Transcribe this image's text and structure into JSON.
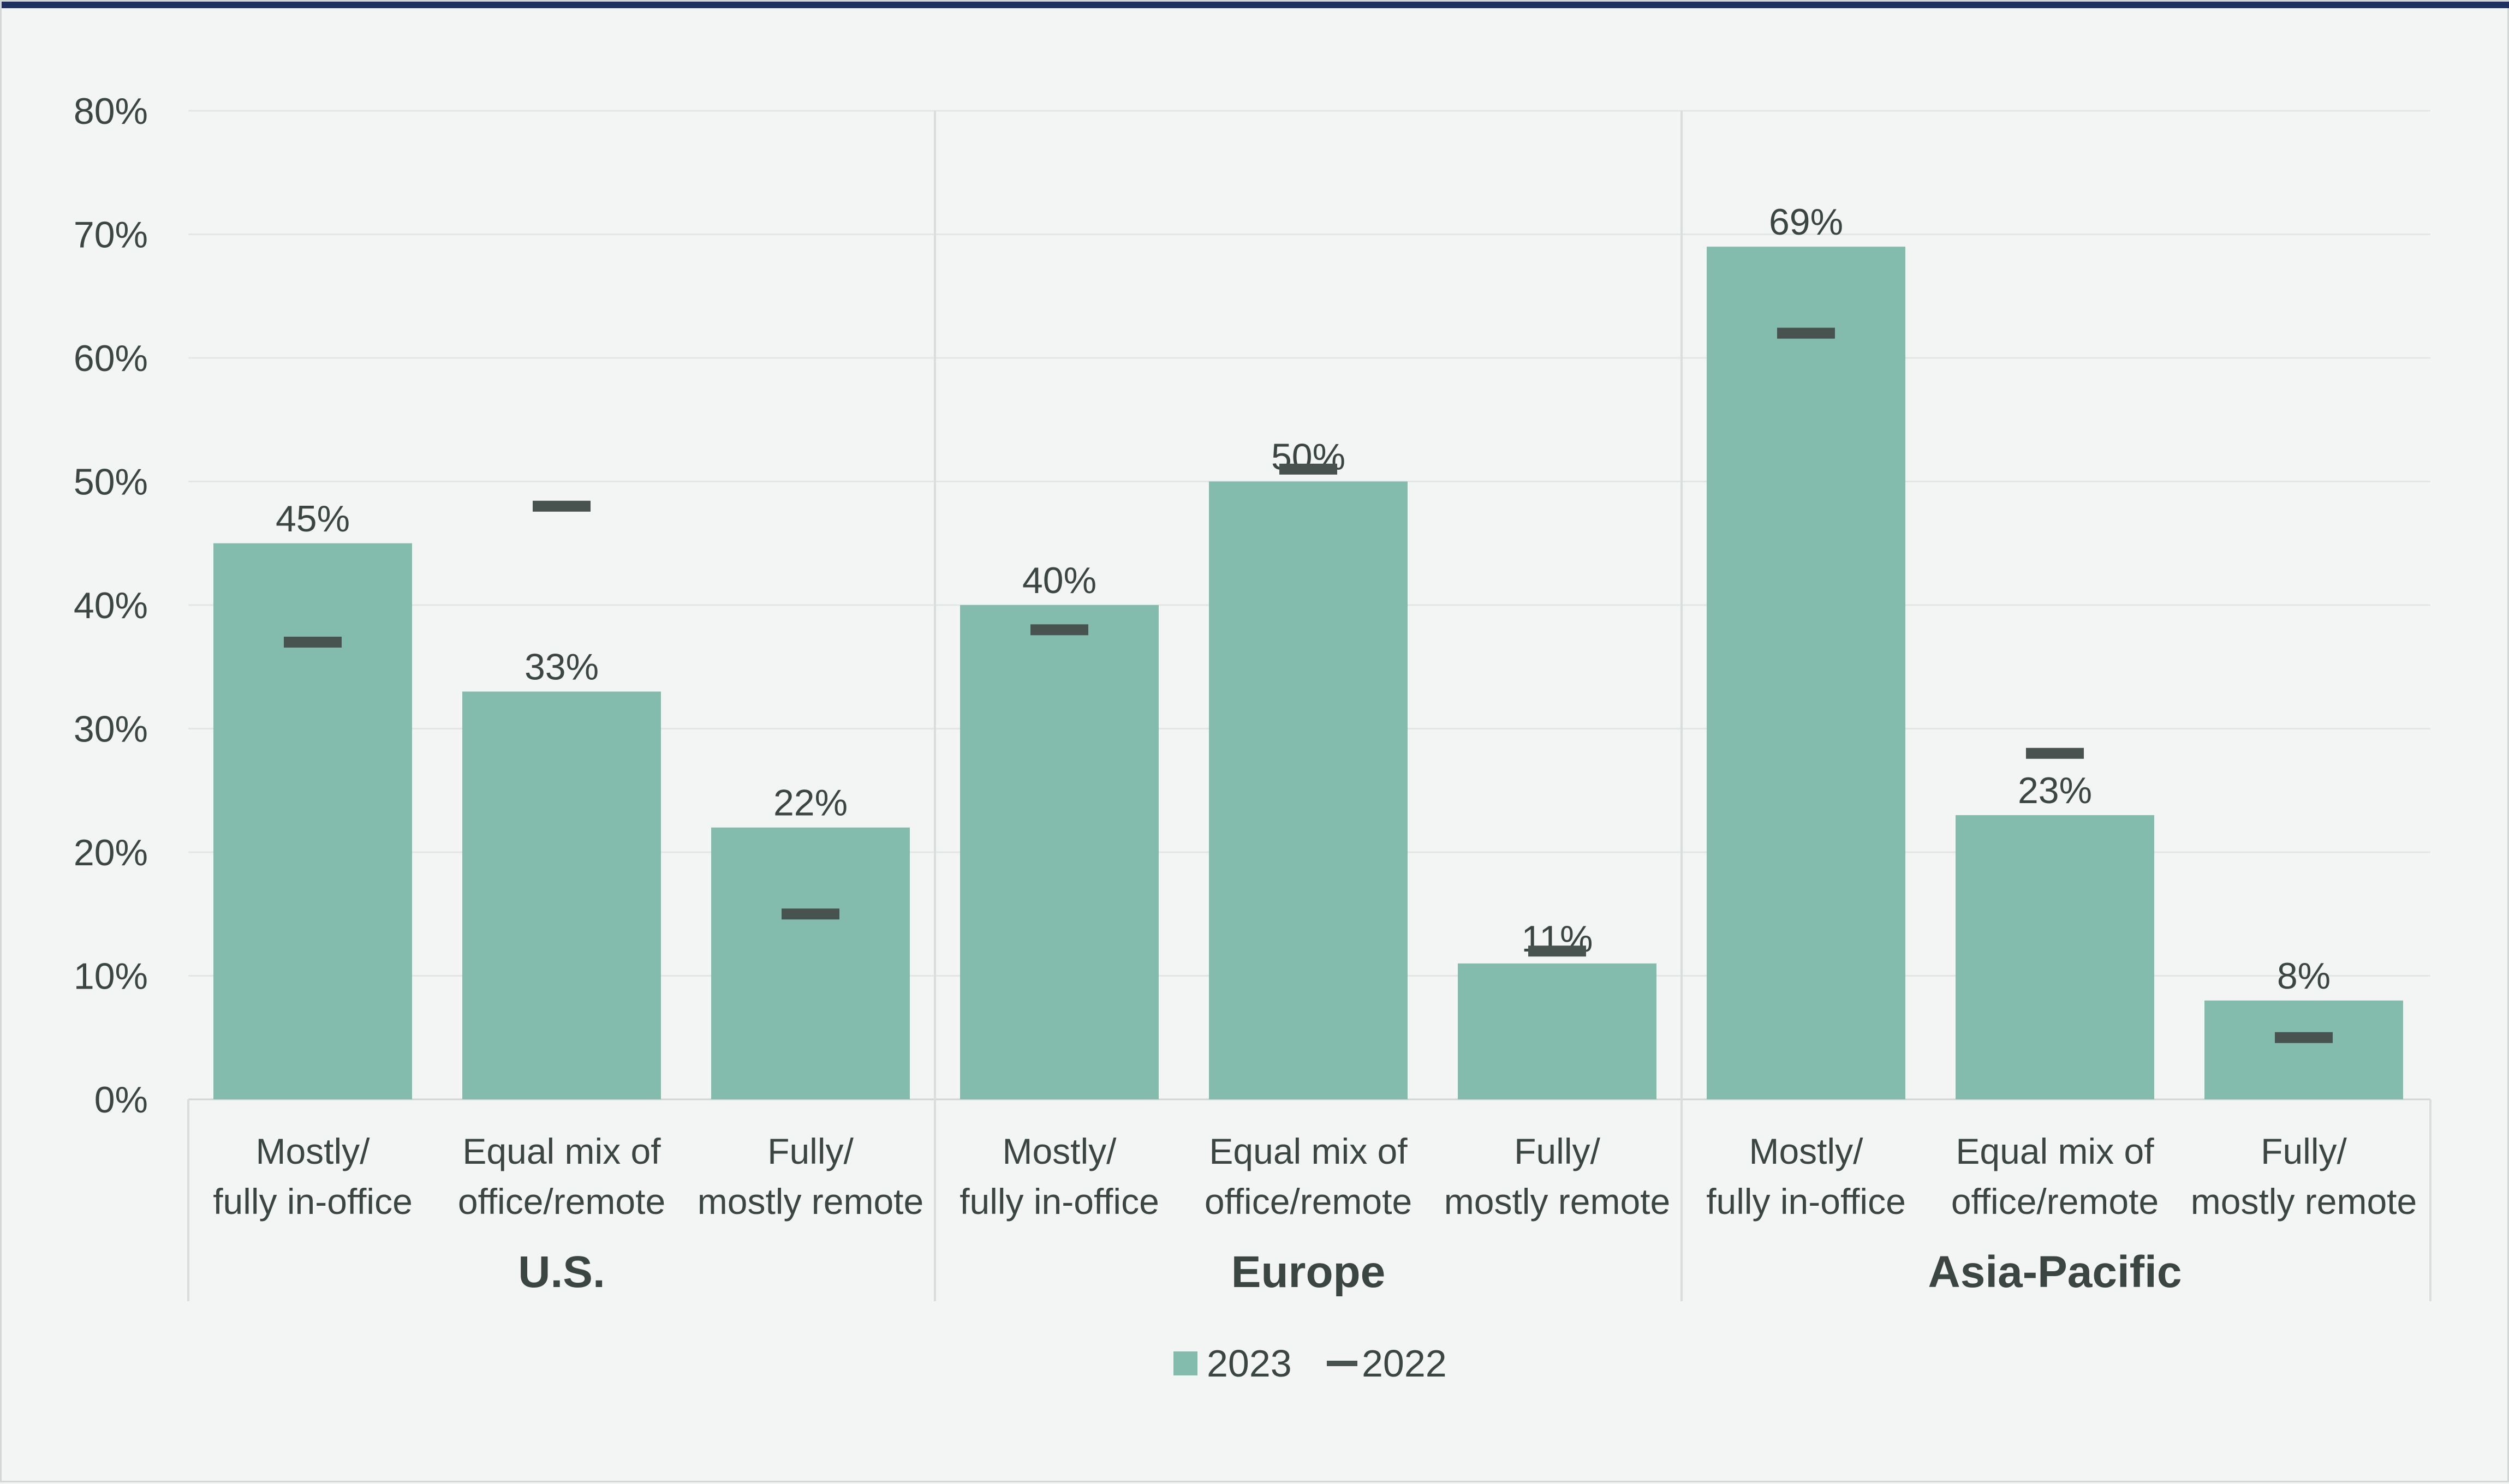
{
  "colors": {
    "series_2023": "#83bbad",
    "series_2022": "#48534f",
    "text": "#3b4542",
    "grid": "#e2e6e5",
    "top_bar": "#1f3163",
    "background": "#f3f5f4"
  },
  "chart_data": {
    "type": "bar",
    "ylim": [
      0,
      80
    ],
    "yticks": [
      "0%",
      "10%",
      "20%",
      "30%",
      "40%",
      "50%",
      "60%",
      "70%",
      "80%"
    ],
    "groups": [
      {
        "name": "U.S.",
        "categories": [
          [
            "Mostly/",
            "fully in-office"
          ],
          [
            "Equal mix of",
            "office/remote"
          ],
          [
            "Fully/",
            "mostly remote"
          ]
        ],
        "values_2023": [
          45,
          33,
          22
        ],
        "values_2022": [
          37,
          48,
          15
        ],
        "labels": [
          "45%",
          "33%",
          "22%"
        ]
      },
      {
        "name": "Europe",
        "categories": [
          [
            "Mostly/",
            "fully in-office"
          ],
          [
            "Equal mix of",
            "office/remote"
          ],
          [
            "Fully/",
            "mostly remote"
          ]
        ],
        "values_2023": [
          40,
          50,
          11
        ],
        "values_2022": [
          38,
          51,
          12
        ],
        "labels": [
          "40%",
          "50%",
          "11%"
        ]
      },
      {
        "name": "Asia-Pacific",
        "categories": [
          [
            "Mostly/",
            "fully in-office"
          ],
          [
            "Equal mix of",
            "office/remote"
          ],
          [
            "Fully/",
            "mostly remote"
          ]
        ],
        "values_2023": [
          69,
          23,
          8
        ],
        "values_2022": [
          62,
          28,
          5
        ],
        "labels": [
          "69%",
          "23%",
          "8%"
        ]
      }
    ],
    "series": [
      {
        "name": "2023",
        "mark": "bar"
      },
      {
        "name": "2022",
        "mark": "dash"
      }
    ],
    "legend_position": "bottom-center",
    "grid": true
  }
}
